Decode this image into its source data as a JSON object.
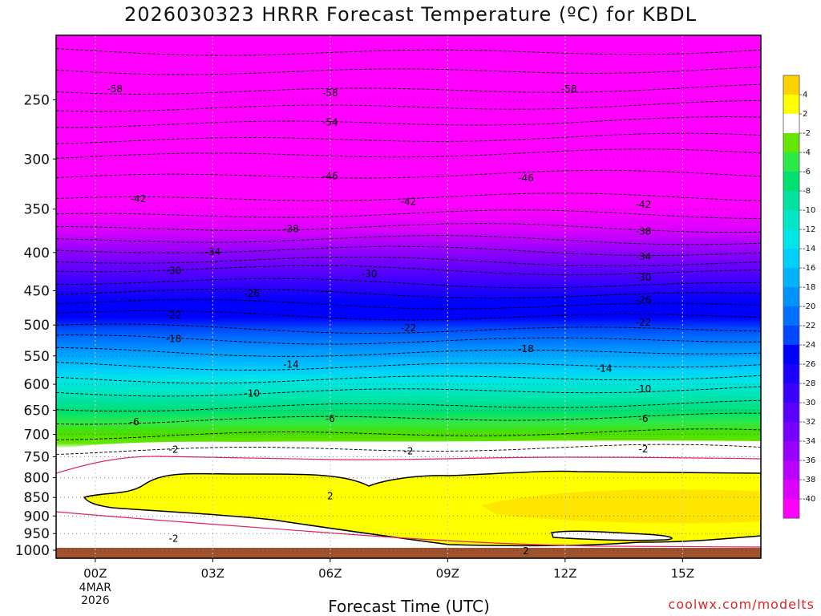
{
  "chart_data": {
    "type": "heatmap",
    "title": "2026030323 HRRR Forecast Temperature (ºC) for KBDL",
    "xlabel": "Forecast Time (UTC)",
    "ylabel": "",
    "x_ticks": [
      "00Z",
      "03Z",
      "06Z",
      "09Z",
      "12Z",
      "15Z"
    ],
    "x_date_label": [
      "4MAR",
      "2026"
    ],
    "x_range_hours": [
      -1,
      17
    ],
    "y_scale": "log",
    "y_range_hpa": [
      1025,
      205
    ],
    "y_ticks": [
      250,
      300,
      350,
      400,
      450,
      500,
      550,
      600,
      650,
      700,
      750,
      800,
      850,
      900,
      950,
      1000
    ],
    "colorbar_ticks": [
      4,
      2,
      -2,
      -4,
      -6,
      -8,
      -10,
      -12,
      -14,
      -16,
      -18,
      -20,
      -22,
      -24,
      -26,
      -28,
      -30,
      -32,
      -34,
      -36,
      -38,
      -40
    ],
    "contour_labels": [
      {
        "value": "-58",
        "x": 0.5,
        "p": 242
      },
      {
        "value": "-58",
        "x": 6,
        "p": 245
      },
      {
        "value": "-58",
        "x": 12.1,
        "p": 242
      },
      {
        "value": "-54",
        "x": 6,
        "p": 268
      },
      {
        "value": "-46",
        "x": 6,
        "p": 316
      },
      {
        "value": "-46",
        "x": 11,
        "p": 318
      },
      {
        "value": "-42",
        "x": 1.1,
        "p": 339
      },
      {
        "value": "-42",
        "x": 8,
        "p": 342
      },
      {
        "value": "-42",
        "x": 14,
        "p": 345
      },
      {
        "value": "-38",
        "x": 5,
        "p": 372
      },
      {
        "value": "-38",
        "x": 14,
        "p": 375
      },
      {
        "value": "-34",
        "x": 3,
        "p": 399
      },
      {
        "value": "-34",
        "x": 14,
        "p": 405
      },
      {
        "value": "-30",
        "x": 2,
        "p": 423
      },
      {
        "value": "-30",
        "x": 7,
        "p": 427
      },
      {
        "value": "-30",
        "x": 14,
        "p": 432
      },
      {
        "value": "-26",
        "x": 4,
        "p": 454
      },
      {
        "value": "-26",
        "x": 14,
        "p": 463
      },
      {
        "value": "-22",
        "x": 2,
        "p": 485
      },
      {
        "value": "-22",
        "x": 8,
        "p": 505
      },
      {
        "value": "-22",
        "x": 14,
        "p": 496
      },
      {
        "value": "-18",
        "x": 2,
        "p": 522
      },
      {
        "value": "-18",
        "x": 11,
        "p": 538
      },
      {
        "value": "-14",
        "x": 5,
        "p": 565
      },
      {
        "value": "-14",
        "x": 13,
        "p": 572
      },
      {
        "value": "-10",
        "x": 4,
        "p": 617
      },
      {
        "value": "-10",
        "x": 14,
        "p": 609
      },
      {
        "value": "-6",
        "x": 1,
        "p": 674
      },
      {
        "value": "-6",
        "x": 6,
        "p": 667
      },
      {
        "value": "-6",
        "x": 14,
        "p": 667
      },
      {
        "value": "-2",
        "x": 2,
        "p": 734
      },
      {
        "value": "-2",
        "x": 8,
        "p": 737
      },
      {
        "value": "-2",
        "x": 14,
        "p": 733
      },
      {
        "value": "2",
        "x": 6,
        "p": 847
      },
      {
        "value": "-2",
        "x": 2,
        "p": 965
      },
      {
        "value": "2",
        "x": 11,
        "p": 1003
      }
    ],
    "colors": {
      "magenta": "#ff00ff",
      "yellow": "#ffff00",
      "orange_yellow": "#ffdd00",
      "white": "#ffffff",
      "ground": "#a0522d",
      "freezing_line": "#e0206c"
    },
    "colorbar_colors": [
      "#ffd200",
      "#ffff00",
      "#ffffff",
      "#64e600",
      "#2ee84a",
      "#00e070",
      "#00e29e",
      "#00e6c6",
      "#00e6e6",
      "#00cffa",
      "#00b2ff",
      "#0092ff",
      "#0070ff",
      "#0048ff",
      "#0000ff",
      "#1c00ff",
      "#3c00ff",
      "#5a00ff",
      "#7800ff",
      "#9800ff",
      "#bb00ff",
      "#dd00ff",
      "#ff00ff"
    ]
  },
  "credit": "coolwx.com/modelts"
}
